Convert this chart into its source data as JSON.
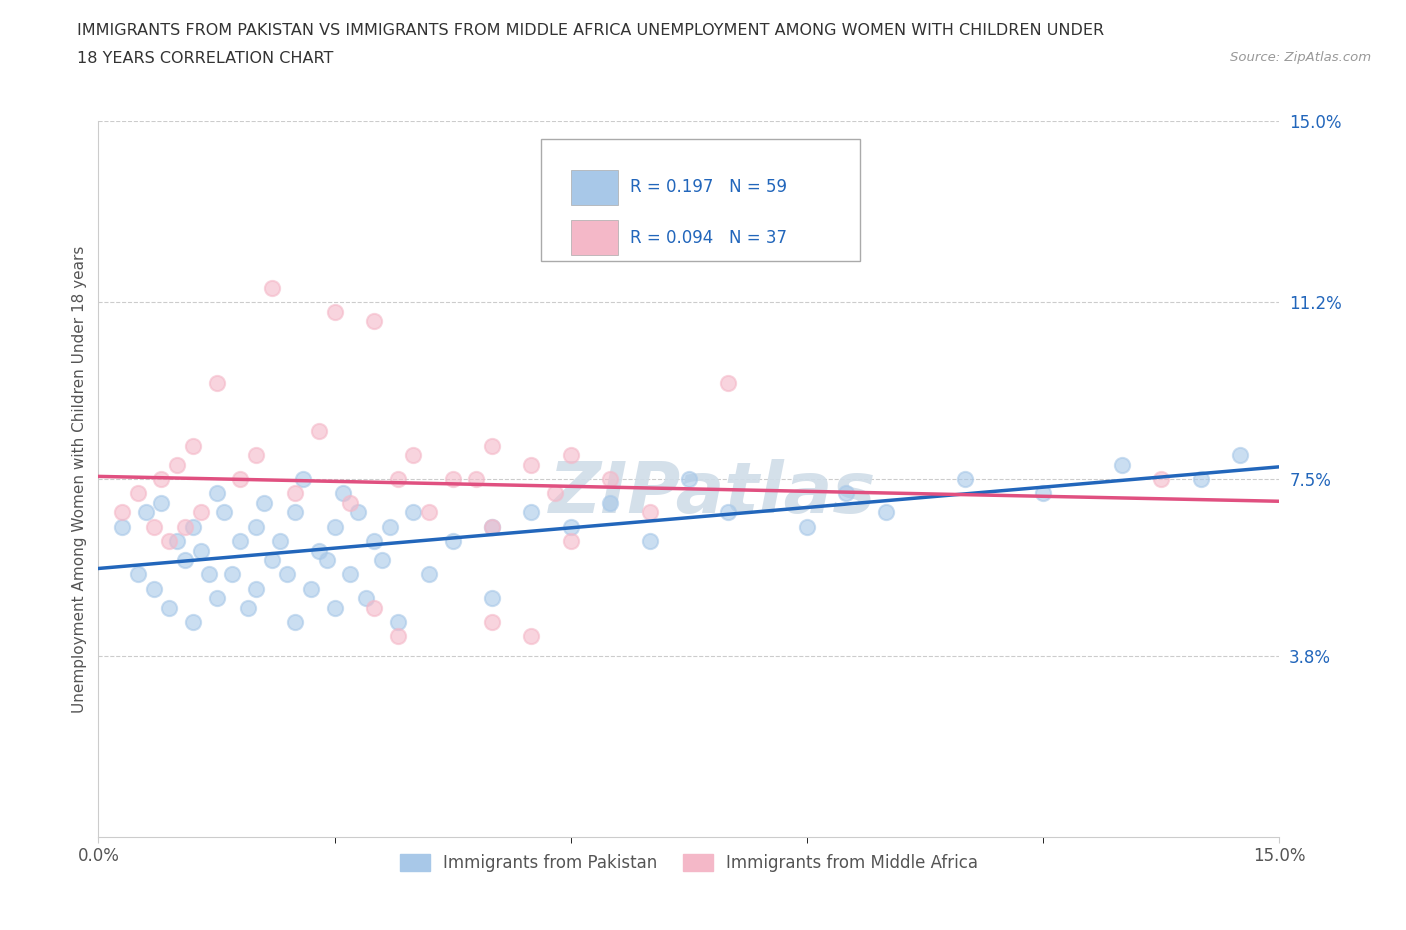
{
  "title_line1": "IMMIGRANTS FROM PAKISTAN VS IMMIGRANTS FROM MIDDLE AFRICA UNEMPLOYMENT AMONG WOMEN WITH CHILDREN UNDER",
  "title_line2": "18 YEARS CORRELATION CHART",
  "source": "Source: ZipAtlas.com",
  "ylabel": "Unemployment Among Women with Children Under 18 years",
  "y_tick_labels": [
    "3.8%",
    "7.5%",
    "11.2%",
    "15.0%"
  ],
  "y_ticks": [
    3.8,
    7.5,
    11.2,
    15.0
  ],
  "xmin": 0.0,
  "xmax": 15.0,
  "ymin": 0.0,
  "ymax": 15.0,
  "pakistan_color": "#a8c8e8",
  "middle_africa_color": "#f4b8c8",
  "pakistan_line_color": "#2266bb",
  "middle_africa_line_color": "#e05080",
  "pakistan_N": 59,
  "middle_africa_N": 37,
  "pakistan_R": "0.197",
  "middle_africa_R": "0.094",
  "pakistan_points": [
    [
      0.3,
      6.5
    ],
    [
      0.5,
      5.5
    ],
    [
      0.6,
      6.8
    ],
    [
      0.7,
      5.2
    ],
    [
      0.8,
      7.0
    ],
    [
      0.9,
      4.8
    ],
    [
      1.0,
      6.2
    ],
    [
      1.1,
      5.8
    ],
    [
      1.2,
      6.5
    ],
    [
      1.2,
      4.5
    ],
    [
      1.3,
      6.0
    ],
    [
      1.4,
      5.5
    ],
    [
      1.5,
      7.2
    ],
    [
      1.5,
      5.0
    ],
    [
      1.6,
      6.8
    ],
    [
      1.7,
      5.5
    ],
    [
      1.8,
      6.2
    ],
    [
      1.9,
      4.8
    ],
    [
      2.0,
      6.5
    ],
    [
      2.0,
      5.2
    ],
    [
      2.1,
      7.0
    ],
    [
      2.2,
      5.8
    ],
    [
      2.3,
      6.2
    ],
    [
      2.4,
      5.5
    ],
    [
      2.5,
      6.8
    ],
    [
      2.5,
      4.5
    ],
    [
      2.6,
      7.5
    ],
    [
      2.7,
      5.2
    ],
    [
      2.8,
      6.0
    ],
    [
      2.9,
      5.8
    ],
    [
      3.0,
      6.5
    ],
    [
      3.0,
      4.8
    ],
    [
      3.1,
      7.2
    ],
    [
      3.2,
      5.5
    ],
    [
      3.3,
      6.8
    ],
    [
      3.4,
      5.0
    ],
    [
      3.5,
      6.2
    ],
    [
      3.6,
      5.8
    ],
    [
      3.7,
      6.5
    ],
    [
      3.8,
      4.5
    ],
    [
      4.0,
      6.8
    ],
    [
      4.2,
      5.5
    ],
    [
      4.5,
      6.2
    ],
    [
      5.0,
      6.5
    ],
    [
      5.0,
      5.0
    ],
    [
      5.5,
      6.8
    ],
    [
      6.0,
      6.5
    ],
    [
      6.5,
      7.0
    ],
    [
      7.0,
      6.2
    ],
    [
      7.5,
      7.5
    ],
    [
      8.0,
      6.8
    ],
    [
      9.0,
      6.5
    ],
    [
      9.5,
      7.2
    ],
    [
      10.0,
      6.8
    ],
    [
      11.0,
      7.5
    ],
    [
      12.0,
      7.2
    ],
    [
      13.0,
      7.8
    ],
    [
      14.0,
      7.5
    ],
    [
      14.5,
      8.0
    ]
  ],
  "middle_africa_points": [
    [
      0.3,
      6.8
    ],
    [
      0.5,
      7.2
    ],
    [
      0.7,
      6.5
    ],
    [
      0.8,
      7.5
    ],
    [
      0.9,
      6.2
    ],
    [
      1.0,
      7.8
    ],
    [
      1.1,
      6.5
    ],
    [
      1.2,
      8.2
    ],
    [
      1.3,
      6.8
    ],
    [
      1.5,
      9.5
    ],
    [
      1.8,
      7.5
    ],
    [
      2.0,
      8.0
    ],
    [
      2.2,
      11.5
    ],
    [
      2.5,
      7.2
    ],
    [
      2.8,
      8.5
    ],
    [
      3.0,
      11.0
    ],
    [
      3.2,
      7.0
    ],
    [
      3.5,
      10.8
    ],
    [
      3.8,
      7.5
    ],
    [
      4.0,
      8.0
    ],
    [
      4.2,
      6.8
    ],
    [
      4.5,
      7.5
    ],
    [
      5.0,
      8.2
    ],
    [
      5.0,
      6.5
    ],
    [
      5.5,
      7.8
    ],
    [
      5.8,
      7.2
    ],
    [
      6.0,
      8.0
    ],
    [
      6.5,
      7.5
    ],
    [
      7.0,
      6.8
    ],
    [
      8.0,
      9.5
    ],
    [
      5.0,
      4.5
    ],
    [
      5.5,
      4.2
    ],
    [
      6.0,
      6.2
    ],
    [
      4.8,
      7.5
    ],
    [
      13.5,
      7.5
    ],
    [
      3.5,
      4.8
    ],
    [
      3.8,
      4.2
    ]
  ],
  "bottom_legend": [
    {
      "label": "Immigrants from Pakistan",
      "color": "#a8c8e8"
    },
    {
      "label": "Immigrants from Middle Africa",
      "color": "#f4b8c8"
    }
  ],
  "grid_color": "#cccccc",
  "background_color": "#ffffff",
  "watermark_text": "ZIPatlas",
  "watermark_color": "#d0dde8"
}
